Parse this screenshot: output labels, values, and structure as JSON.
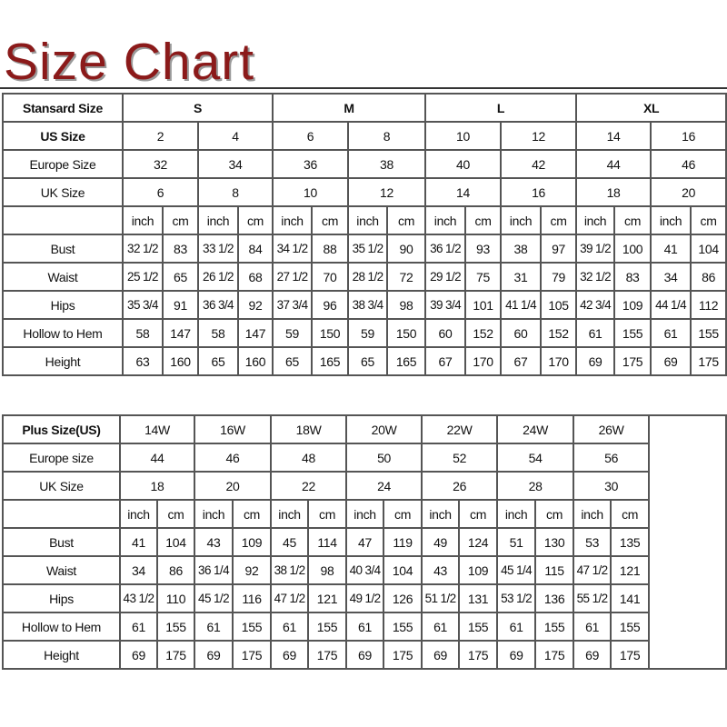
{
  "title": "Size Chart",
  "colors": {
    "title": "#8b1a1a",
    "grid": "#555555"
  },
  "standard": {
    "header_label": "Stansard Size",
    "groups": [
      "S",
      "M",
      "L",
      "XL"
    ],
    "size_rows": [
      {
        "label": "US Size",
        "values": [
          "2",
          "4",
          "6",
          "8",
          "10",
          "12",
          "14",
          "16"
        ]
      },
      {
        "label": "Europe Size",
        "values": [
          "32",
          "34",
          "36",
          "38",
          "40",
          "42",
          "44",
          "46"
        ]
      },
      {
        "label": "UK Size",
        "values": [
          "6",
          "8",
          "10",
          "12",
          "14",
          "16",
          "18",
          "20"
        ]
      }
    ],
    "units": [
      "inch",
      "cm"
    ],
    "measurements": [
      {
        "label": "Bust",
        "values": [
          "32 1/2",
          "83",
          "33 1/2",
          "84",
          "34 1/2",
          "88",
          "35 1/2",
          "90",
          "36 1/2",
          "93",
          "38",
          "97",
          "39 1/2",
          "100",
          "41",
          "104"
        ]
      },
      {
        "label": "Waist",
        "values": [
          "25 1/2",
          "65",
          "26 1/2",
          "68",
          "27 1/2",
          "70",
          "28 1/2",
          "72",
          "29 1/2",
          "75",
          "31",
          "79",
          "32 1/2",
          "83",
          "34",
          "86"
        ]
      },
      {
        "label": "Hips",
        "values": [
          "35 3/4",
          "91",
          "36 3/4",
          "92",
          "37 3/4",
          "96",
          "38 3/4",
          "98",
          "39 3/4",
          "101",
          "41 1/4",
          "105",
          "42 3/4",
          "109",
          "44 1/4",
          "112"
        ]
      },
      {
        "label": "Hollow to Hem",
        "values": [
          "58",
          "147",
          "58",
          "147",
          "59",
          "150",
          "59",
          "150",
          "60",
          "152",
          "60",
          "152",
          "61",
          "155",
          "61",
          "155"
        ]
      },
      {
        "label": "Height",
        "values": [
          "63",
          "160",
          "65",
          "160",
          "65",
          "165",
          "65",
          "165",
          "67",
          "170",
          "67",
          "170",
          "69",
          "175",
          "69",
          "175"
        ]
      }
    ]
  },
  "plus": {
    "header_label": "Plus Size(US)",
    "sizes": [
      "14W",
      "16W",
      "18W",
      "20W",
      "22W",
      "24W",
      "26W"
    ],
    "size_rows": [
      {
        "label": "Europe size",
        "values": [
          "44",
          "46",
          "48",
          "50",
          "52",
          "54",
          "56"
        ]
      },
      {
        "label": "UK Size",
        "values": [
          "18",
          "20",
          "22",
          "24",
          "26",
          "28",
          "30"
        ]
      }
    ],
    "units": [
      "inch",
      "cm"
    ],
    "measurements": [
      {
        "label": "Bust",
        "values": [
          "41",
          "104",
          "43",
          "109",
          "45",
          "114",
          "47",
          "119",
          "49",
          "124",
          "51",
          "130",
          "53",
          "135"
        ]
      },
      {
        "label": "Waist",
        "values": [
          "34",
          "86",
          "36 1/4",
          "92",
          "38 1/2",
          "98",
          "40 3/4",
          "104",
          "43",
          "109",
          "45 1/4",
          "115",
          "47 1/2",
          "121"
        ]
      },
      {
        "label": "Hips",
        "values": [
          "43 1/2",
          "110",
          "45 1/2",
          "116",
          "47 1/2",
          "121",
          "49 1/2",
          "126",
          "51 1/2",
          "131",
          "53 1/2",
          "136",
          "55 1/2",
          "141"
        ]
      },
      {
        "label": "Hollow to Hem",
        "values": [
          "61",
          "155",
          "61",
          "155",
          "61",
          "155",
          "61",
          "155",
          "61",
          "155",
          "61",
          "155",
          "61",
          "155"
        ]
      },
      {
        "label": "Height",
        "values": [
          "69",
          "175",
          "69",
          "175",
          "69",
          "175",
          "69",
          "175",
          "69",
          "175",
          "69",
          "175",
          "69",
          "175"
        ]
      }
    ]
  }
}
